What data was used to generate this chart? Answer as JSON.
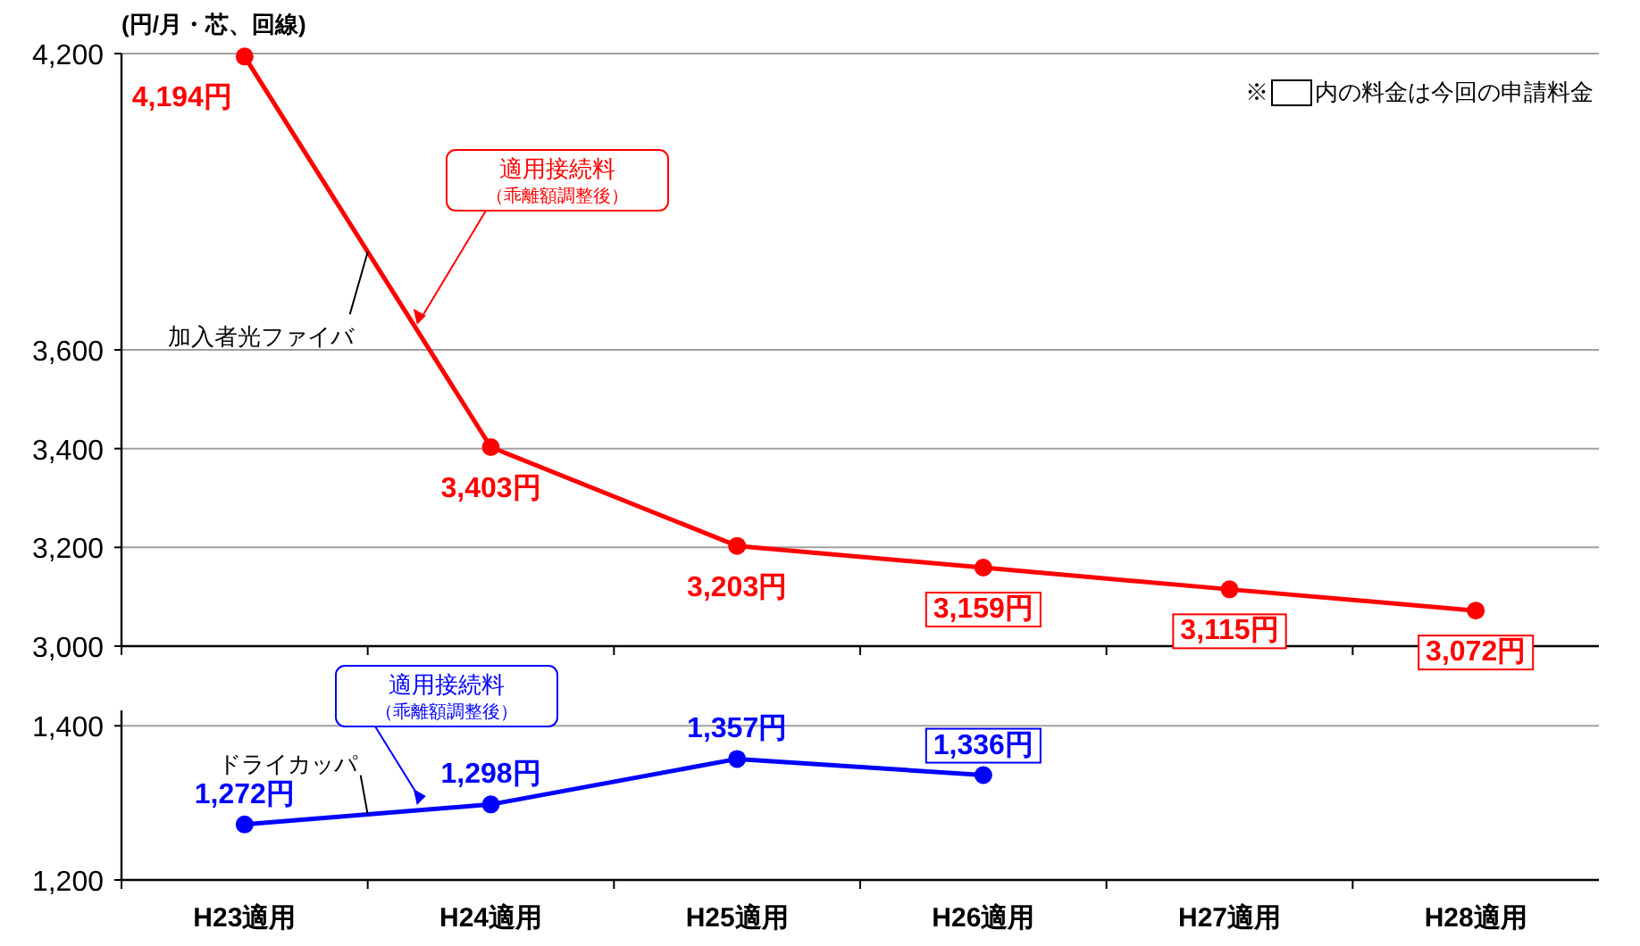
{
  "chart_data": [
    {
      "type": "line",
      "ylabel": "(円/月・芯、回線)",
      "series": [
        {
          "name": "加入者光ファイバ",
          "color": "#ff0000",
          "values": [
            4194,
            3403,
            3203,
            3159,
            3115,
            3072
          ],
          "value_labels": [
            "4,194円",
            "3,403円",
            "3,203円",
            "3,159円",
            "3,115円",
            "3,072円"
          ]
        }
      ],
      "ylim": [
        3000,
        4200
      ],
      "yticks": [
        {
          "value": 3000,
          "label": "3,000"
        },
        {
          "value": 3200,
          "label": "3,200"
        },
        {
          "value": 3400,
          "label": "3,400"
        },
        {
          "value": 3600,
          "label": "3,600"
        },
        {
          "value": 4200,
          "label": "4,200"
        }
      ],
      "grid": "y",
      "marker": "circle",
      "tick_labels": "y",
      "annotations": [
        "※　　内の料金は今回の申請料金",
        "適用接続料（乖離額調整後）"
      ]
    },
    {
      "type": "line",
      "categories": [
        "H23適用",
        "H24適用",
        "H25適用",
        "H26適用",
        "H27適用",
        "H28適用"
      ],
      "series": [
        {
          "name": "ドライカッパ",
          "color": "#0000ff",
          "values": [
            1272,
            1298,
            1357,
            1336,
            null,
            null
          ],
          "value_labels": [
            "1,272円",
            "1,298円",
            "1,357円",
            "1,336円",
            null,
            null
          ]
        }
      ],
      "ylim": [
        1200,
        1420
      ],
      "yticks": [
        {
          "value": 1200,
          "label": "1,200"
        },
        {
          "value": 1400,
          "label": "1,400"
        }
      ],
      "grid": "y",
      "marker": "circle",
      "annotations": [
        "適用接続料（乖離額調整後）"
      ]
    }
  ]
}
